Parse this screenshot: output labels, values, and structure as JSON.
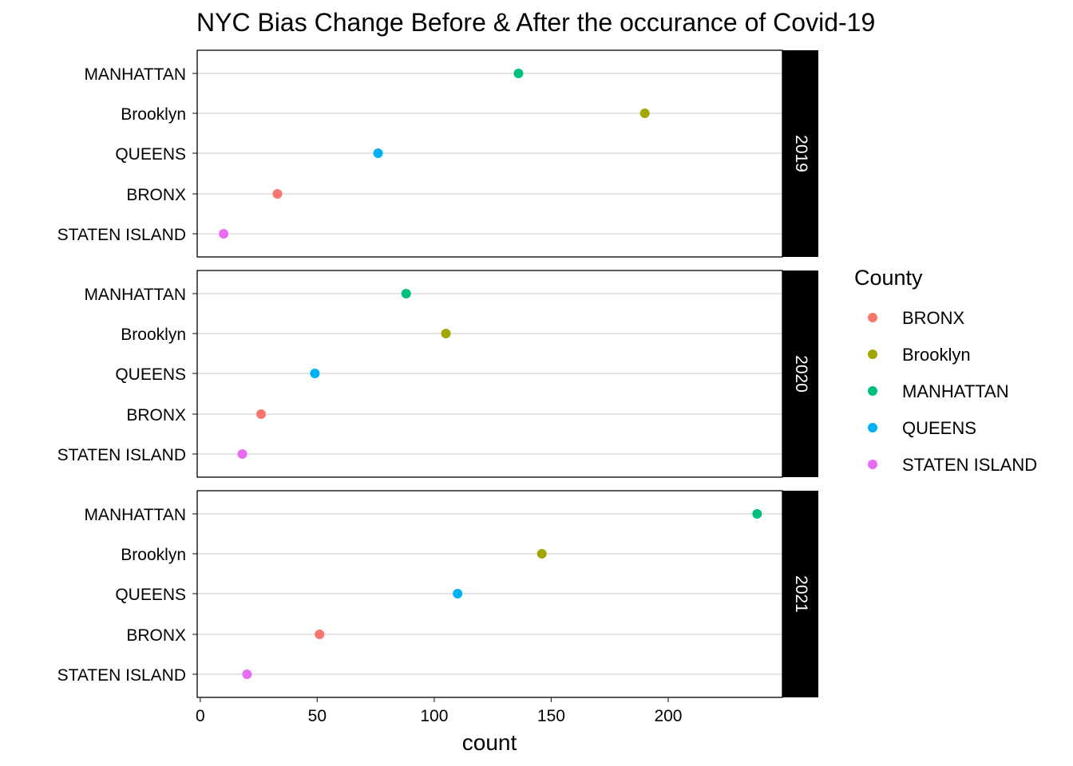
{
  "chart_data": {
    "type": "scatter",
    "title": "NYC Bias Change Before & After the occurance of Covid-19",
    "xlabel": "count",
    "ylabel": "",
    "xlim": [
      -1.3,
      248.8
    ],
    "x_ticks": [
      0,
      50,
      100,
      150,
      200
    ],
    "x_tick_labels": [
      "0",
      "50",
      "100",
      "150",
      "200"
    ],
    "categories": [
      "MANHATTAN",
      "Brooklyn",
      "QUEENS",
      "BRONX",
      "STATEN ISLAND"
    ],
    "grid": true,
    "legend": {
      "title": "County",
      "placement": "right",
      "entries": [
        {
          "name": "BRONX",
          "color": "#F8766D"
        },
        {
          "name": "Brooklyn",
          "color": "#A3A500"
        },
        {
          "name": "MANHATTAN",
          "color": "#00BF7D"
        },
        {
          "name": "QUEENS",
          "color": "#00B0F6"
        },
        {
          "name": "STATEN ISLAND",
          "color": "#E76BF3"
        }
      ]
    },
    "facets": [
      {
        "label": "2019",
        "points": [
          {
            "county": "MANHATTAN",
            "x": 136,
            "color": "#00BF7D"
          },
          {
            "county": "Brooklyn",
            "x": 190,
            "color": "#A3A500"
          },
          {
            "county": "QUEENS",
            "x": 76,
            "color": "#00B0F6"
          },
          {
            "county": "BRONX",
            "x": 33,
            "color": "#F8766D"
          },
          {
            "county": "STATEN ISLAND",
            "x": 10,
            "color": "#E76BF3"
          }
        ]
      },
      {
        "label": "2020",
        "points": [
          {
            "county": "MANHATTAN",
            "x": 88,
            "color": "#00BF7D"
          },
          {
            "county": "Brooklyn",
            "x": 105,
            "color": "#A3A500"
          },
          {
            "county": "QUEENS",
            "x": 49,
            "color": "#00B0F6"
          },
          {
            "county": "BRONX",
            "x": 26,
            "color": "#F8766D"
          },
          {
            "county": "STATEN ISLAND",
            "x": 18,
            "color": "#E76BF3"
          }
        ]
      },
      {
        "label": "2021",
        "points": [
          {
            "county": "MANHATTAN",
            "x": 238,
            "color": "#00BF7D"
          },
          {
            "county": "Brooklyn",
            "x": 146,
            "color": "#A3A500"
          },
          {
            "county": "QUEENS",
            "x": 110,
            "color": "#00B0F6"
          },
          {
            "county": "BRONX",
            "x": 51,
            "color": "#F8766D"
          },
          {
            "county": "STATEN ISLAND",
            "x": 20,
            "color": "#E76BF3"
          }
        ]
      }
    ]
  }
}
